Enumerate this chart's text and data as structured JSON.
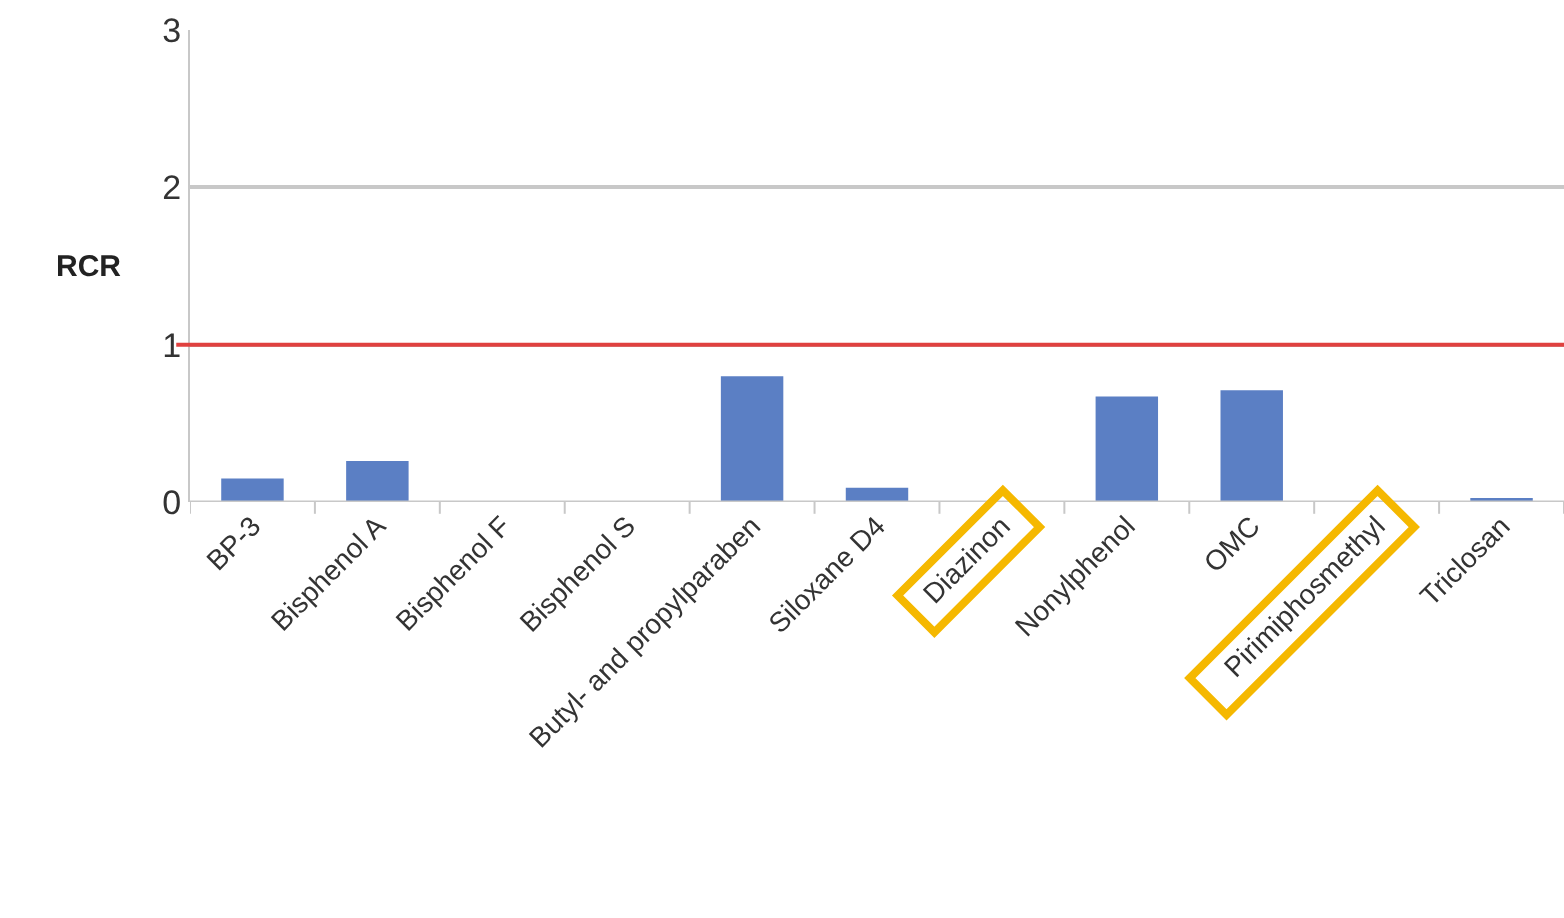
{
  "chart_data": {
    "type": "bar",
    "ylabel": "RCR",
    "categories": [
      "BP-3",
      "Bisphenol A",
      "Bisphenol F",
      "Bisphenol S",
      "Butyl- and propylparaben",
      "Siloxane D4",
      "Diazinon",
      "Nonylphenol",
      "OMC",
      "Pirimiphosmethyl",
      "Triclosan"
    ],
    "values": [
      0.15,
      0.26,
      0,
      0,
      0.8,
      0.09,
      0,
      0.67,
      0.71,
      0,
      0.02
    ],
    "color": "#5b7fc4",
    "ylim": [
      0,
      3
    ],
    "yticks": [
      0,
      1,
      2,
      3
    ],
    "grid": "y",
    "ref_lines": [
      {
        "axis": "y",
        "value": 1,
        "color": "#e0413f"
      }
    ]
  }
}
